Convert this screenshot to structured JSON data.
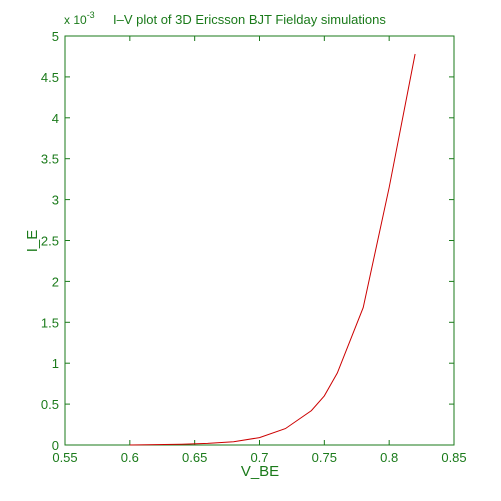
{
  "colors": {
    "axis": "#1a7a1a",
    "series": "#cc0000",
    "background": "#ffffff"
  },
  "chart_data": {
    "type": "line",
    "title": "I–V plot of 3D Ericsson BJT Fielday simulations",
    "xlabel": "V_BE",
    "ylabel": "I_E",
    "y_scale_note": {
      "base": "x 10",
      "exponent": "-3"
    },
    "xlim": [
      0.55,
      0.85
    ],
    "ylim": [
      0,
      5
    ],
    "xticks": [
      "0.55",
      "0.6",
      "0.65",
      "0.7",
      "0.75",
      "0.8",
      "0.85"
    ],
    "yticks": [
      "0",
      "0.5",
      "1",
      "1.5",
      "2",
      "2.5",
      "3",
      "3.5",
      "4",
      "4.5",
      "5"
    ],
    "grid": false,
    "legend": "none",
    "series": [
      {
        "x": [
          0.6,
          0.62,
          0.64,
          0.66,
          0.68,
          0.7,
          0.72,
          0.74,
          0.75,
          0.76,
          0.78,
          0.8,
          0.82
        ],
        "y": [
          0.0,
          0.005,
          0.01,
          0.02,
          0.04,
          0.09,
          0.2,
          0.42,
          0.6,
          0.88,
          1.68,
          3.15,
          4.78
        ]
      }
    ]
  }
}
